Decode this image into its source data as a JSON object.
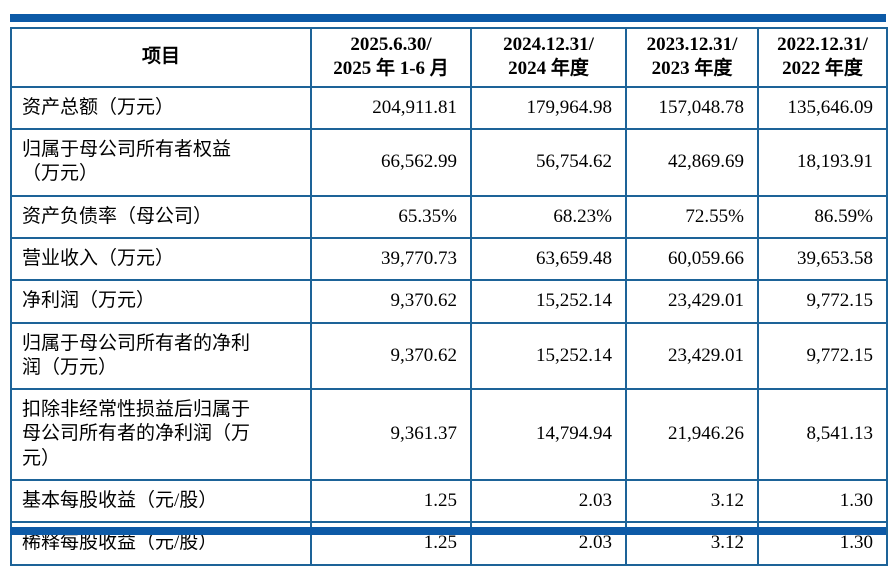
{
  "colors": {
    "accent_bar": "#0d5aa7",
    "table_border": "#1d6398",
    "text": "#000000"
  },
  "table": {
    "header": {
      "item_label": "项目",
      "periods": [
        "2025.6.30/\n2025 年 1-6 月",
        "2024.12.31/\n2024 年度",
        "2023.12.31/\n2023 年度",
        "2022.12.31/\n2022 年度"
      ]
    },
    "rows": [
      {
        "label": "资产总额（万元）",
        "values": [
          "204,911.81",
          "179,964.98",
          "157,048.78",
          "135,646.09"
        ]
      },
      {
        "label": "归属于母公司所有者权益\n（万元）",
        "values": [
          "66,562.99",
          "56,754.62",
          "42,869.69",
          "18,193.91"
        ]
      },
      {
        "label": "资产负债率（母公司）",
        "values": [
          "65.35%",
          "68.23%",
          "72.55%",
          "86.59%"
        ]
      },
      {
        "label": "营业收入（万元）",
        "values": [
          "39,770.73",
          "63,659.48",
          "60,059.66",
          "39,653.58"
        ]
      },
      {
        "label": "净利润（万元）",
        "values": [
          "9,370.62",
          "15,252.14",
          "23,429.01",
          "9,772.15"
        ]
      },
      {
        "label": "归属于母公司所有者的净利\n润（万元）",
        "values": [
          "9,370.62",
          "15,252.14",
          "23,429.01",
          "9,772.15"
        ]
      },
      {
        "label": "扣除非经常性损益后归属于\n母公司所有者的净利润（万\n元）",
        "values": [
          "9,361.37",
          "14,794.94",
          "21,946.26",
          "8,541.13"
        ]
      },
      {
        "label": "基本每股收益（元/股）",
        "values": [
          "1.25",
          "2.03",
          "3.12",
          "1.30"
        ]
      },
      {
        "label": "稀释每股收益（元/股）",
        "values": [
          "1.25",
          "2.03",
          "3.12",
          "1.30"
        ]
      }
    ]
  }
}
